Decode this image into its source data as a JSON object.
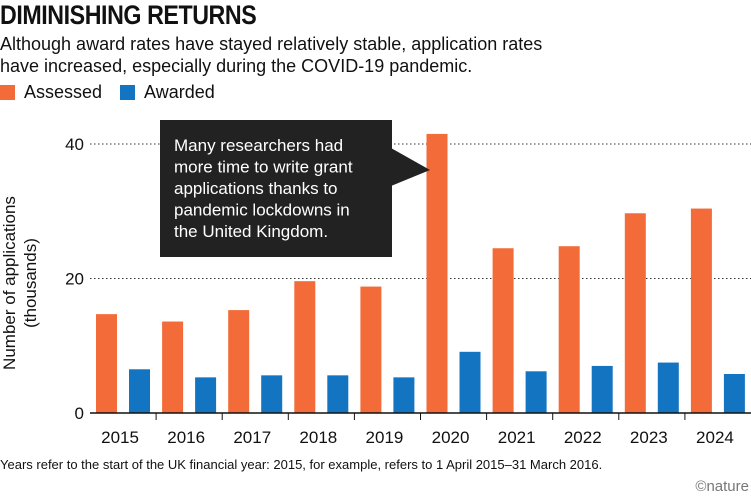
{
  "title": "DIMINISHING RETURNS",
  "subtitle": "Although award rates have stayed relatively stable, application rates have increased, especially during the COVID-19 pandemic.",
  "legend": [
    {
      "label": "Assessed",
      "color": "#f26b38"
    },
    {
      "label": "Awarded",
      "color": "#1374c1"
    }
  ],
  "callout": [
    "Many researchers had",
    "more time to write grant",
    "applications thanks to",
    "pandemic lockdowns in",
    "the United Kingdom."
  ],
  "note": "Years refer to the start of the UK financial year: 2015, for example, refers to 1 April 2015–31 March 2016.",
  "credit": "©nature",
  "chart_data": {
    "type": "bar",
    "title": "DIMINISHING RETURNS",
    "xlabel": "",
    "ylabel": "Number of applications (thousands)",
    "ylim": [
      0,
      40
    ],
    "yticks": [
      0,
      20,
      40
    ],
    "categories": [
      "2015",
      "2016",
      "2017",
      "2018",
      "2019",
      "2020",
      "2021",
      "2022",
      "2023",
      "2024"
    ],
    "series": [
      {
        "name": "Assessed",
        "color": "#f26b38",
        "values": [
          14.7,
          13.6,
          15.3,
          19.6,
          18.8,
          41.5,
          24.5,
          24.8,
          29.7,
          30.4
        ]
      },
      {
        "name": "Awarded",
        "color": "#1374c1",
        "values": [
          6.5,
          5.3,
          5.6,
          5.6,
          5.3,
          9.1,
          6.2,
          7.0,
          7.5,
          5.8
        ]
      }
    ]
  }
}
